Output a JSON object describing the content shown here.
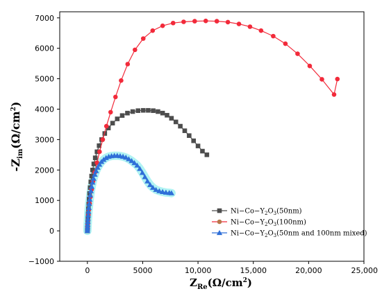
{
  "chart_data": {
    "type": "scatter",
    "title": "",
    "xlabel": {
      "main": "Z",
      "sub": "Re",
      "unit": "(Ω/cm",
      "sup": "2",
      "close": ")"
    },
    "ylabel": {
      "prefix": "-Z",
      "sub": "im",
      "unit": "(Ω/cm",
      "sup": "2",
      "close": ")"
    },
    "xlim": [
      -2500,
      25000
    ],
    "ylim": [
      -1000,
      7200
    ],
    "xticks": [
      {
        "value": 0,
        "label": "0"
      },
      {
        "value": 5000,
        "label": "5000"
      },
      {
        "value": 10000,
        "label": "10,000"
      },
      {
        "value": 15000,
        "label": "15,000"
      },
      {
        "value": 20000,
        "label": "20,000"
      },
      {
        "value": 25000,
        "label": "25,000"
      }
    ],
    "yticks": [
      {
        "value": -1000,
        "label": "−1000"
      },
      {
        "value": 0,
        "label": "0"
      },
      {
        "value": 1000,
        "label": "1000"
      },
      {
        "value": 2000,
        "label": "2000"
      },
      {
        "value": 3000,
        "label": "3000"
      },
      {
        "value": 4000,
        "label": "4000"
      },
      {
        "value": 5000,
        "label": "5000"
      },
      {
        "value": 6000,
        "label": "6000"
      },
      {
        "value": 7000,
        "label": "7000"
      }
    ],
    "grid": false,
    "legend_position": "bottom-right",
    "series": [
      {
        "legend_label": {
          "pre": "Ni−Co−Y",
          "sub1": "2",
          "mid": "O",
          "sub2": "3",
          "post": "(50nm)"
        },
        "marker": "square",
        "color": "#4d4d4d",
        "line_color": "#4d4d4d",
        "points": [
          [
            0,
            0
          ],
          [
            10,
            80
          ],
          [
            20,
            180
          ],
          [
            35,
            300
          ],
          [
            50,
            420
          ],
          [
            70,
            560
          ],
          [
            95,
            720
          ],
          [
            125,
            880
          ],
          [
            160,
            1050
          ],
          [
            200,
            1230
          ],
          [
            250,
            1420
          ],
          [
            310,
            1610
          ],
          [
            380,
            1800
          ],
          [
            470,
            2000
          ],
          [
            580,
            2200
          ],
          [
            710,
            2400
          ],
          [
            870,
            2600
          ],
          [
            1060,
            2800
          ],
          [
            1290,
            3000
          ],
          [
            1570,
            3200
          ],
          [
            1900,
            3380
          ],
          [
            2280,
            3540
          ],
          [
            2700,
            3680
          ],
          [
            3150,
            3790
          ],
          [
            3620,
            3870
          ],
          [
            4100,
            3920
          ],
          [
            4580,
            3950
          ],
          [
            5050,
            3960
          ],
          [
            5500,
            3960
          ],
          [
            5950,
            3950
          ],
          [
            6380,
            3920
          ],
          [
            6800,
            3870
          ],
          [
            7200,
            3800
          ],
          [
            7600,
            3700
          ],
          [
            8000,
            3580
          ],
          [
            8400,
            3440
          ],
          [
            8800,
            3290
          ],
          [
            9200,
            3130
          ],
          [
            9600,
            2960
          ],
          [
            10000,
            2790
          ],
          [
            10400,
            2620
          ],
          [
            10800,
            2500
          ]
        ]
      },
      {
        "legend_label": {
          "pre": "Ni−Co−Y",
          "sub1": "2",
          "mid": "O",
          "sub2": "3",
          "post": "(100nm)"
        },
        "marker": "circle",
        "color": "#b8784b",
        "line_color": "#f22a3a",
        "points": [
          [
            0,
            0
          ],
          [
            15,
            100
          ],
          [
            35,
            220
          ],
          [
            60,
            360
          ],
          [
            95,
            520
          ],
          [
            140,
            700
          ],
          [
            200,
            900
          ],
          [
            280,
            1120
          ],
          [
            380,
            1360
          ],
          [
            510,
            1630
          ],
          [
            670,
            1920
          ],
          [
            870,
            2240
          ],
          [
            1100,
            2600
          ],
          [
            1390,
            3000
          ],
          [
            1720,
            3440
          ],
          [
            2100,
            3900
          ],
          [
            2540,
            4400
          ],
          [
            3050,
            4940
          ],
          [
            3640,
            5480
          ],
          [
            4300,
            5950
          ],
          [
            5050,
            6320
          ],
          [
            5900,
            6580
          ],
          [
            6800,
            6740
          ],
          [
            7750,
            6830
          ],
          [
            8700,
            6870
          ],
          [
            9700,
            6890
          ],
          [
            10700,
            6900
          ],
          [
            11700,
            6890
          ],
          [
            12700,
            6860
          ],
          [
            13700,
            6800
          ],
          [
            14700,
            6710
          ],
          [
            15700,
            6580
          ],
          [
            16800,
            6400
          ],
          [
            17900,
            6150
          ],
          [
            19000,
            5820
          ],
          [
            20100,
            5420
          ],
          [
            21200,
            4980
          ],
          [
            22300,
            4480
          ],
          [
            22600,
            4990
          ]
        ]
      },
      {
        "legend_label": {
          "pre": "Ni−Co−Y",
          "sub1": "2",
          "mid": "O",
          "sub2": "3",
          "post": "(50nm and 100nm mixed)"
        },
        "marker": "triangle",
        "color": "#2f6fd8",
        "line_color": "#2f6fd8",
        "halo_color": "#a9f2f2",
        "points": [
          [
            0,
            0
          ],
          [
            5,
            60
          ],
          [
            15,
            130
          ],
          [
            25,
            210
          ],
          [
            40,
            300
          ],
          [
            55,
            400
          ],
          [
            75,
            510
          ],
          [
            100,
            630
          ],
          [
            130,
            760
          ],
          [
            165,
            890
          ],
          [
            210,
            1030
          ],
          [
            260,
            1170
          ],
          [
            320,
            1310
          ],
          [
            390,
            1450
          ],
          [
            470,
            1590
          ],
          [
            560,
            1720
          ],
          [
            670,
            1850
          ],
          [
            790,
            1970
          ],
          [
            930,
            2080
          ],
          [
            1090,
            2180
          ],
          [
            1270,
            2270
          ],
          [
            1470,
            2340
          ],
          [
            1690,
            2400
          ],
          [
            1930,
            2440
          ],
          [
            2180,
            2460
          ],
          [
            2440,
            2470
          ],
          [
            2700,
            2470
          ],
          [
            2960,
            2460
          ],
          [
            3220,
            2440
          ],
          [
            3480,
            2410
          ],
          [
            3740,
            2360
          ],
          [
            4000,
            2300
          ],
          [
            4250,
            2230
          ],
          [
            4500,
            2150
          ],
          [
            4740,
            2040
          ],
          [
            4970,
            1910
          ],
          [
            5200,
            1770
          ],
          [
            5430,
            1630
          ],
          [
            5670,
            1510
          ],
          [
            5920,
            1420
          ],
          [
            6200,
            1350
          ],
          [
            6500,
            1310
          ],
          [
            6800,
            1280
          ],
          [
            7100,
            1260
          ],
          [
            7400,
            1250
          ],
          [
            7600,
            1240
          ]
        ]
      }
    ]
  }
}
